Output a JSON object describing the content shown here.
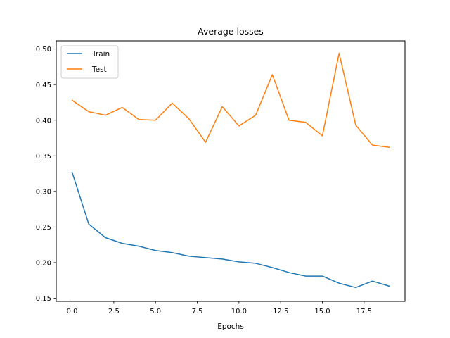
{
  "chart_data": {
    "type": "line",
    "title": "Average losses",
    "xlabel": "Epochs",
    "ylabel": "",
    "xlim": [
      -0.95,
      19.95
    ],
    "ylim": [
      0.1455,
      0.5115
    ],
    "x_ticks": [
      0.0,
      2.5,
      5.0,
      7.5,
      10.0,
      12.5,
      15.0,
      17.5
    ],
    "x_tick_labels": [
      "0.0",
      "2.5",
      "5.0",
      "7.5",
      "10.0",
      "12.5",
      "15.0",
      "17.5"
    ],
    "y_ticks": [
      0.15,
      0.2,
      0.25,
      0.3,
      0.35,
      0.4,
      0.45,
      0.5
    ],
    "y_tick_labels": [
      "0.15",
      "0.20",
      "0.25",
      "0.30",
      "0.35",
      "0.40",
      "0.45",
      "0.50"
    ],
    "grid": false,
    "legend_position": "top-left",
    "x": [
      0,
      1,
      2,
      3,
      4,
      5,
      6,
      7,
      8,
      9,
      10,
      11,
      12,
      13,
      14,
      15,
      16,
      17,
      18,
      19
    ],
    "series": [
      {
        "name": "Train",
        "color": "#1f77b4",
        "values": [
          0.327,
          0.254,
          0.235,
          0.227,
          0.223,
          0.217,
          0.214,
          0.209,
          0.207,
          0.205,
          0.201,
          0.199,
          0.193,
          0.186,
          0.181,
          0.181,
          0.171,
          0.165,
          0.174,
          0.167
        ]
      },
      {
        "name": "Test",
        "color": "#ff7f0e",
        "values": [
          0.428,
          0.412,
          0.407,
          0.418,
          0.401,
          0.4,
          0.424,
          0.402,
          0.369,
          0.419,
          0.392,
          0.407,
          0.464,
          0.4,
          0.397,
          0.378,
          0.494,
          0.393,
          0.365,
          0.362
        ]
      }
    ]
  }
}
